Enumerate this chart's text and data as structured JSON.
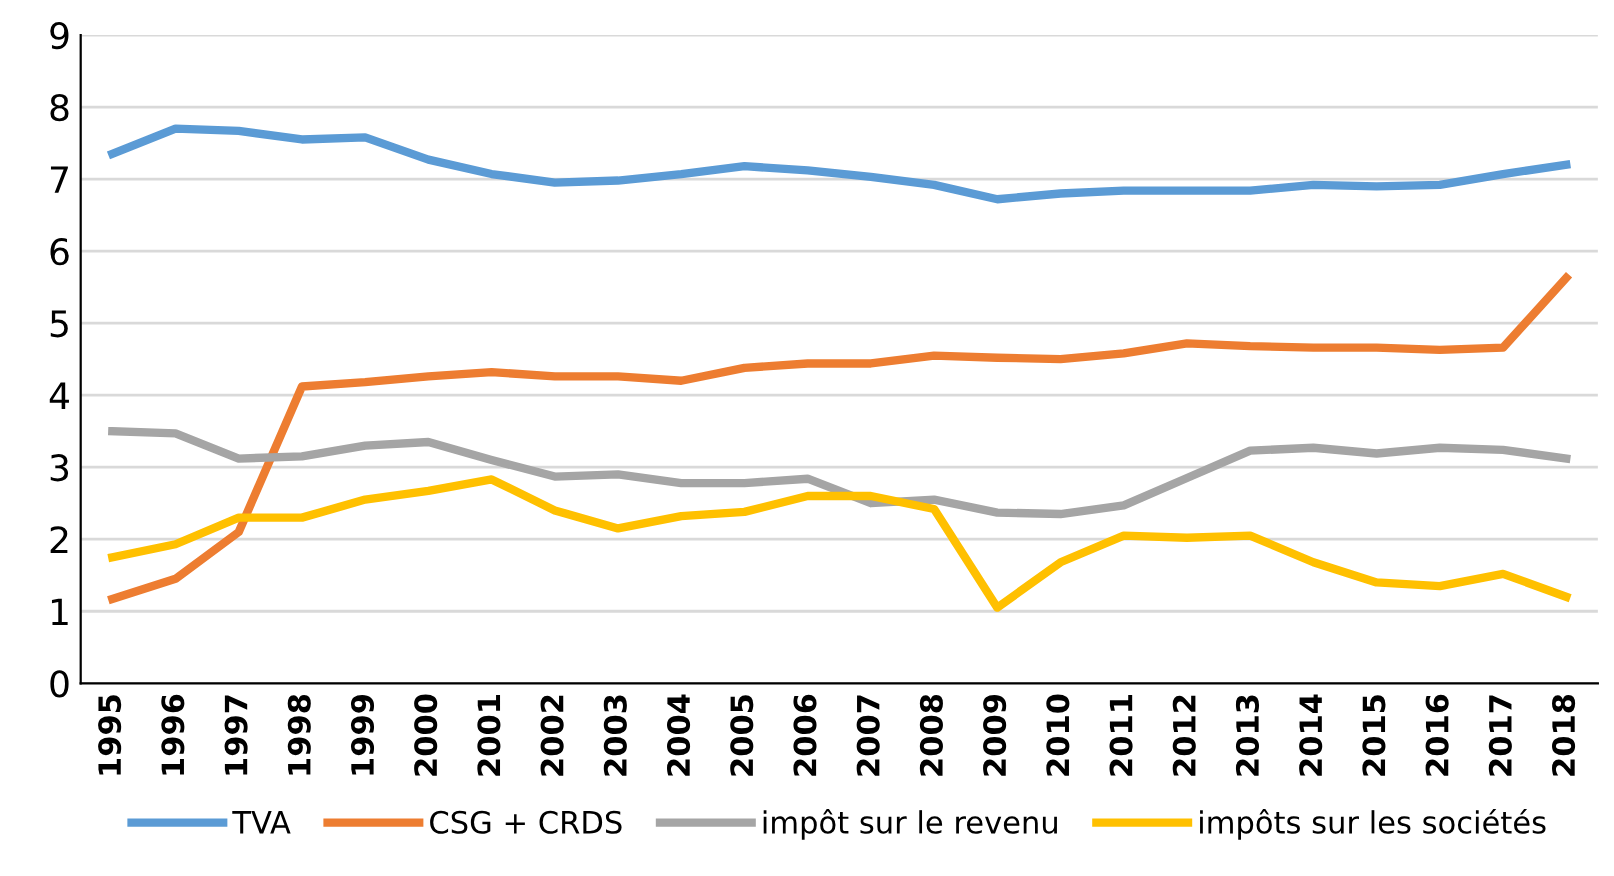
{
  "chart_data": {
    "type": "line",
    "categories": [
      "1995",
      "1996",
      "1997",
      "1998",
      "1999",
      "2000",
      "2001",
      "2002",
      "2003",
      "2004",
      "2005",
      "2006",
      "2007",
      "2008",
      "2009",
      "2010",
      "2011",
      "2012",
      "2013",
      "2014",
      "2015",
      "2016",
      "2017",
      "2018"
    ],
    "series": [
      {
        "name": "TVA",
        "color": "#5b9bd5",
        "values": [
          7.35,
          7.7,
          7.67,
          7.55,
          7.58,
          7.27,
          7.07,
          6.95,
          6.98,
          7.07,
          7.18,
          7.12,
          7.03,
          6.92,
          6.72,
          6.8,
          6.84,
          6.84,
          6.84,
          6.92,
          6.9,
          6.92,
          7.07,
          7.2
        ]
      },
      {
        "name": "CSG + CRDS",
        "color": "#ed7d31",
        "values": [
          1.17,
          1.45,
          2.1,
          4.12,
          4.18,
          4.26,
          4.32,
          4.26,
          4.26,
          4.2,
          4.38,
          4.44,
          4.44,
          4.55,
          4.52,
          4.5,
          4.58,
          4.72,
          4.68,
          4.66,
          4.66,
          4.63,
          4.66,
          5.63
        ]
      },
      {
        "name": "impôt sur le revenu",
        "color": "#a5a5a5",
        "values": [
          3.5,
          3.47,
          3.12,
          3.15,
          3.3,
          3.35,
          3.1,
          2.87,
          2.9,
          2.78,
          2.78,
          2.84,
          2.5,
          2.55,
          2.37,
          2.35,
          2.47,
          2.85,
          3.23,
          3.27,
          3.19,
          3.27,
          3.24,
          3.12
        ]
      },
      {
        "name": "impôts sur les sociétés",
        "color": "#ffc000",
        "values": [
          1.75,
          1.93,
          2.3,
          2.3,
          2.55,
          2.67,
          2.83,
          2.4,
          2.15,
          2.32,
          2.38,
          2.6,
          2.6,
          2.42,
          1.05,
          1.68,
          2.05,
          2.02,
          2.05,
          1.68,
          1.4,
          1.35,
          1.52,
          1.2
        ]
      }
    ],
    "ylim": [
      0,
      9
    ],
    "yticks": [
      0,
      1,
      2,
      3,
      4,
      5,
      6,
      7,
      8,
      9
    ],
    "grid": "y",
    "legend": "bottom",
    "marker": "none",
    "line_style": "solid"
  }
}
